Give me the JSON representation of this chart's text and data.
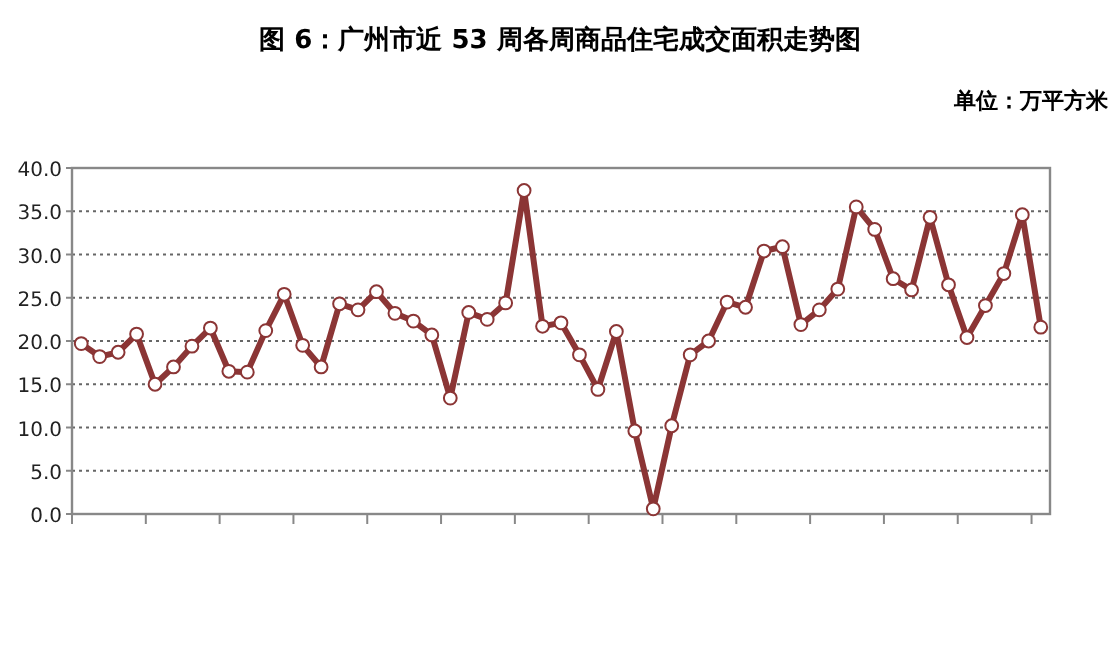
{
  "chart_data": {
    "type": "line",
    "title": "图 6：广州市近 53 周各周商品住宅成交面积走势图",
    "annotations": [
      "单位：万平方米"
    ],
    "categories": [
      null,
      null,
      null,
      null,
      null,
      null,
      null,
      null,
      null,
      null,
      null,
      null,
      null,
      null,
      null,
      null,
      null,
      null,
      null,
      null,
      null,
      null,
      null,
      null,
      null,
      null,
      null,
      null,
      null,
      null,
      null,
      null,
      null,
      null,
      null,
      null,
      null,
      null,
      null,
      null,
      null,
      null,
      null,
      null,
      null,
      null,
      null,
      null,
      null,
      null,
      null,
      null,
      null
    ],
    "series": [
      {
        "color": "#8b3535",
        "values": [
          19.7,
          18.2,
          18.7,
          20.8,
          15.0,
          17.0,
          19.4,
          21.5,
          16.5,
          16.4,
          21.2,
          25.4,
          19.5,
          17.0,
          24.3,
          23.6,
          25.7,
          23.2,
          22.3,
          20.7,
          13.4,
          23.3,
          22.5,
          24.4,
          37.4,
          21.7,
          22.1,
          18.4,
          14.4,
          21.1,
          9.6,
          0.6,
          10.2,
          18.4,
          20.0,
          24.5,
          23.9,
          30.4,
          30.9,
          21.9,
          23.6,
          26.0,
          35.5,
          32.9,
          27.2,
          25.9,
          34.3,
          26.5,
          20.4,
          24.1,
          27.8,
          34.6,
          21.6
        ]
      }
    ],
    "ylim": [
      0,
      40
    ],
    "yticks": [
      {
        "value": 0,
        "label": "0.0"
      },
      {
        "value": 5,
        "label": "5.0"
      },
      {
        "value": 10,
        "label": "10.0"
      },
      {
        "value": 15,
        "label": "15.0"
      },
      {
        "value": 20,
        "label": "20.0"
      },
      {
        "value": 25,
        "label": "25.0"
      },
      {
        "value": 30,
        "label": "30.0"
      },
      {
        "value": 35,
        "label": "35.0"
      },
      {
        "value": 40,
        "label": "40.0"
      }
    ],
    "grid": "y",
    "marker": "circle",
    "line_style": "solid"
  }
}
